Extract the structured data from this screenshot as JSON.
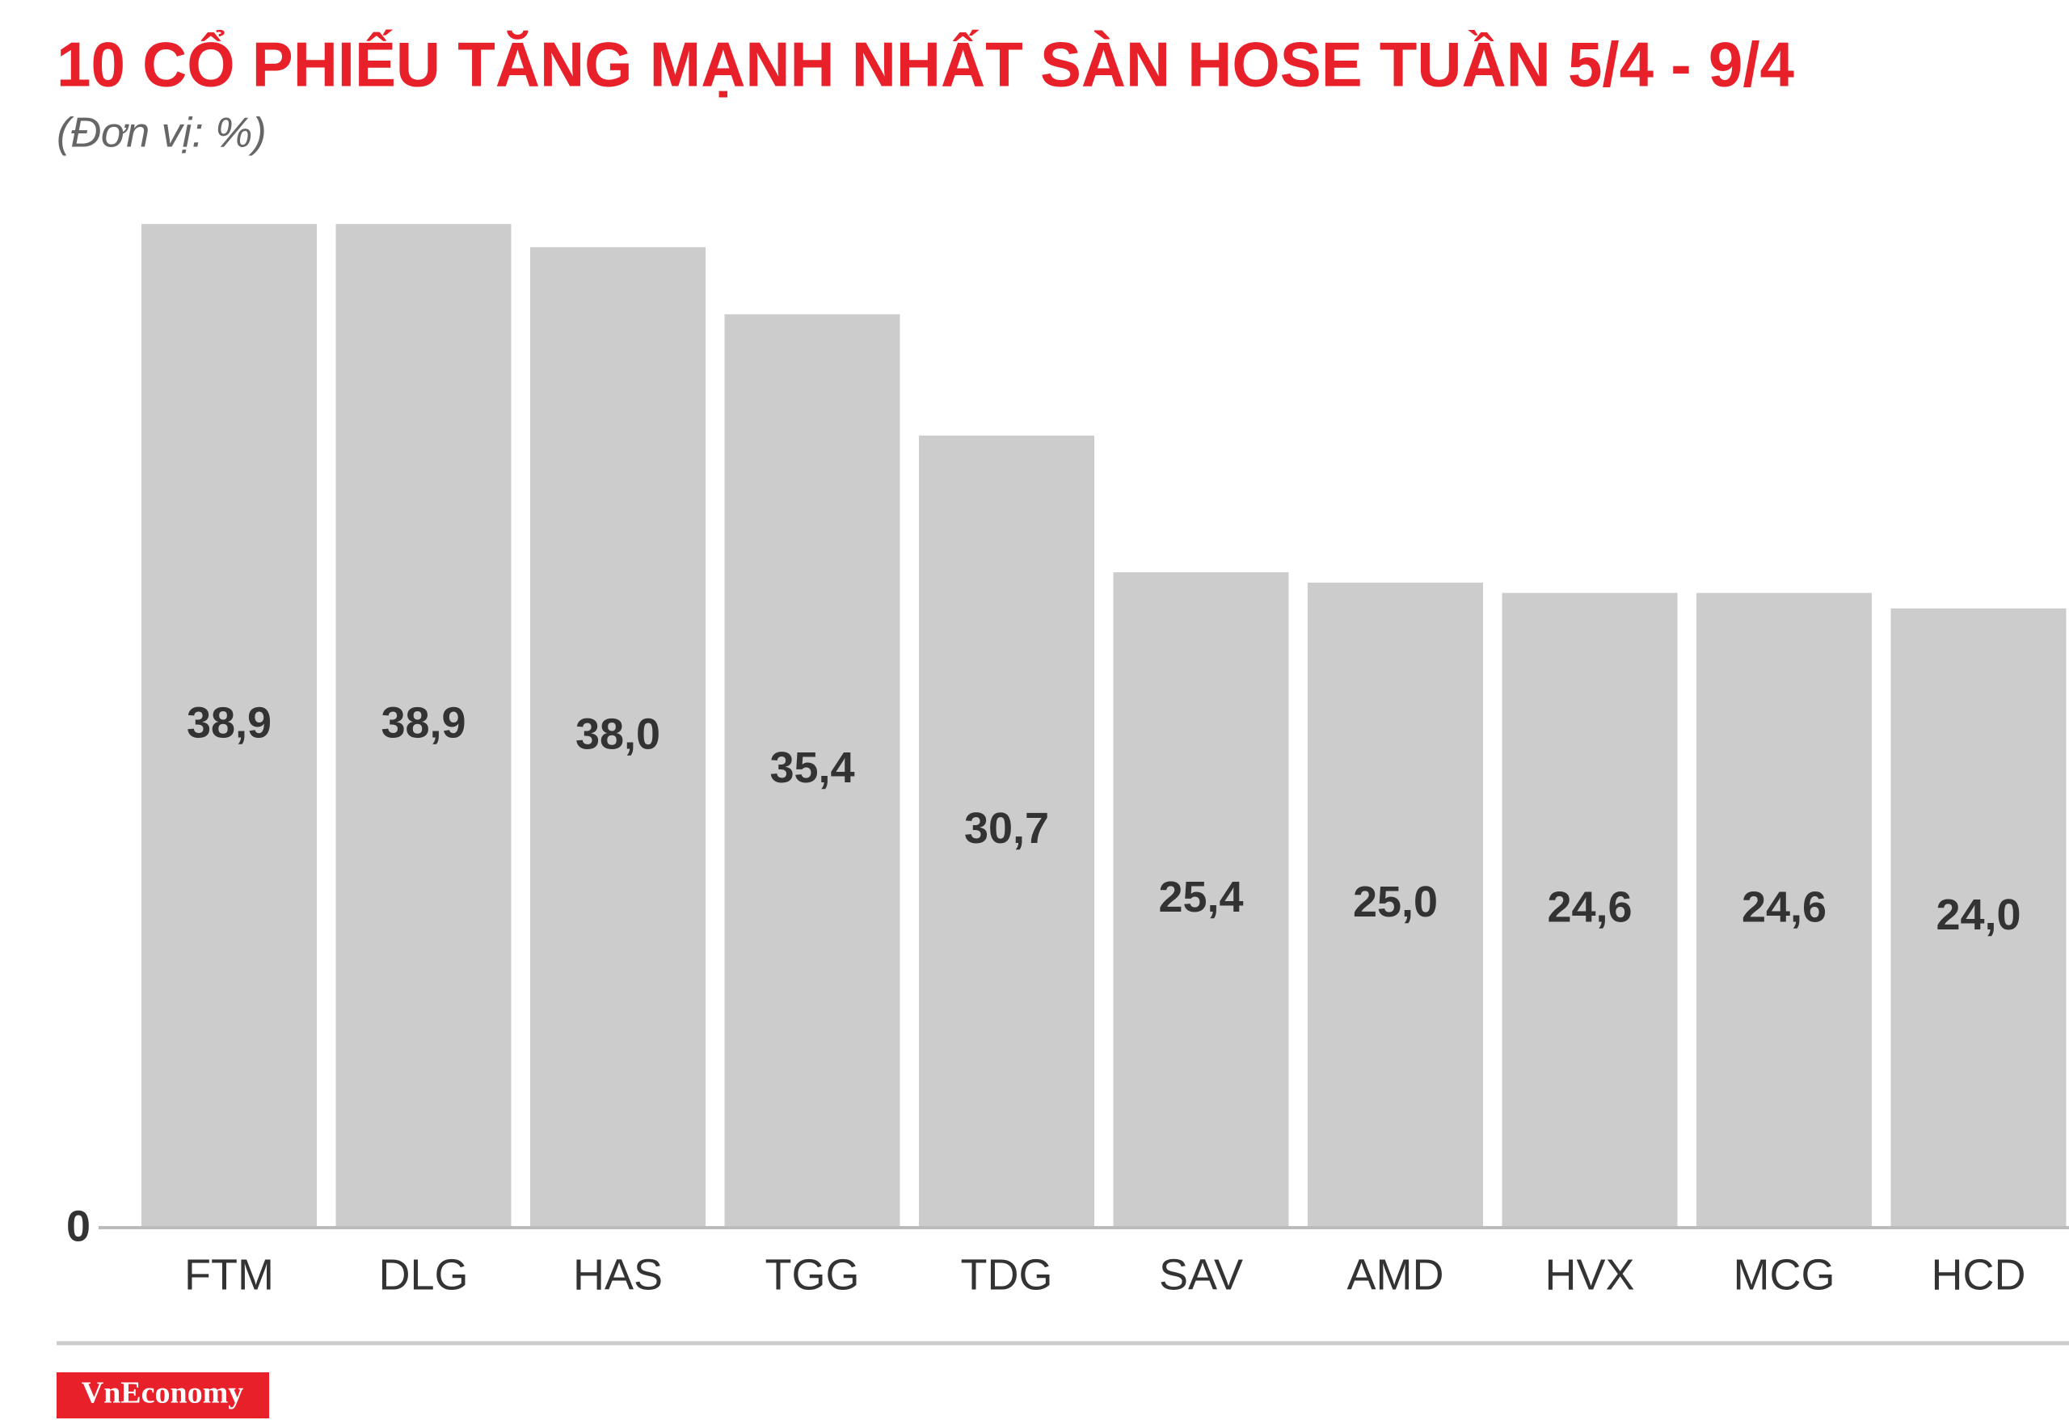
{
  "chart_data": {
    "type": "bar",
    "title": "10 CỔ PHIẾU TĂNG MẠNH NHẤT SÀN HOSE TUẦN 5/4 - 9/4",
    "subtitle": "(Đơn vị: %)",
    "categories": [
      "FTM",
      "DLG",
      "HAS",
      "TGG",
      "TDG",
      "SAV",
      "AMD",
      "HVX",
      "MCG",
      "HCD"
    ],
    "values": [
      38.9,
      38.9,
      38.0,
      35.4,
      30.7,
      25.4,
      25.0,
      24.6,
      24.6,
      24.0
    ],
    "value_labels": [
      "38,9",
      "38,9",
      "38,0",
      "35,4",
      "30,7",
      "25,4",
      "25,0",
      "24,6",
      "24,6",
      "24,0"
    ],
    "color": "#cccccc",
    "ylim": [
      0,
      40
    ],
    "yticks": [
      0
    ],
    "grid": false
  },
  "brand": "VnEconomy"
}
